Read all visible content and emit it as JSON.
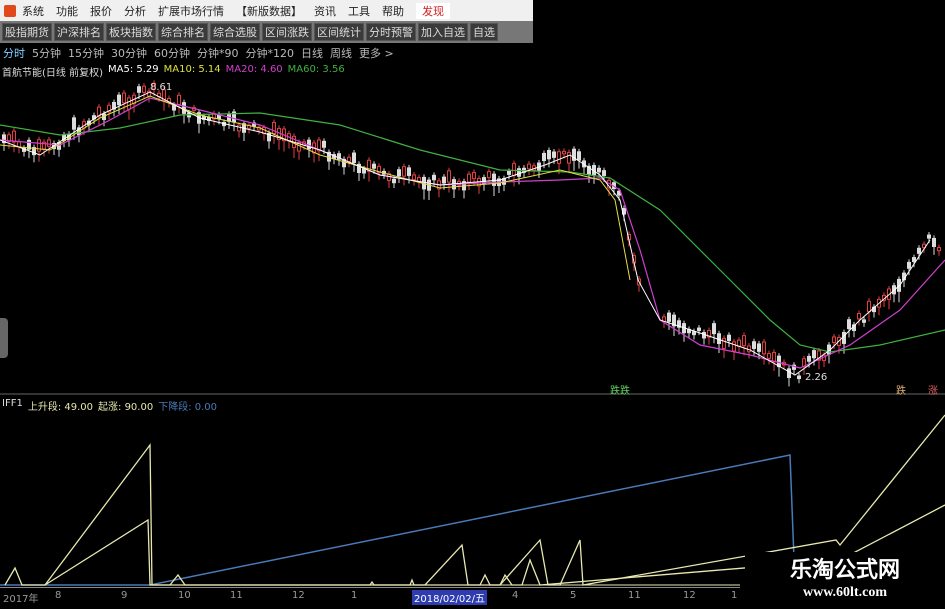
{
  "menu": {
    "items": [
      "系统",
      "功能",
      "报价",
      "分析",
      "扩展市场行情",
      "【新版数据】",
      "资讯",
      "工具",
      "帮助",
      "发现"
    ]
  },
  "toolbar": {
    "buttons": [
      "股指期货",
      "沪深排名",
      "板块指数",
      "综合排名",
      "综合选股",
      "区间涨跌",
      "区间统计",
      "分时预警",
      "加入自选",
      "自选"
    ]
  },
  "periods": {
    "items": [
      "分时",
      "5分钟",
      "15分钟",
      "30分钟",
      "60分钟",
      "分钟*90",
      "分钟*120",
      "日线",
      "周线",
      "更多 >"
    ],
    "selected": "分时"
  },
  "main_chart": {
    "title": "首航节能(日线 前复权)",
    "ma5": "MA5: 5.29",
    "ma10": "MA10: 5.14",
    "ma20": "MA20: 4.60",
    "ma60": "MA60: 3.56",
    "high_label": "8.61",
    "low_label": "2.26",
    "tags": [
      "跌跌",
      "跌",
      "涨"
    ],
    "colors": {
      "ma5": "#ffffff",
      "ma10": "#e0e040",
      "ma20": "#d040d0",
      "ma60": "#40b040"
    }
  },
  "indicator": {
    "name": "IFF1",
    "rise": "上升段: 49.00",
    "start": "起涨: 90.00",
    "fall": "下降段: 0.00",
    "colors": {
      "rise": "#e8e8b0",
      "fall": "#4a7ab8"
    }
  },
  "xaxis": {
    "labels": [
      "2017年",
      "8",
      "9",
      "10",
      "11",
      "12",
      "1",
      "2018/02/02/五",
      "4",
      "5",
      "11",
      "12",
      "1"
    ]
  },
  "watermark": {
    "title": "乐淘公式网",
    "url": "www.60lt.com"
  }
}
